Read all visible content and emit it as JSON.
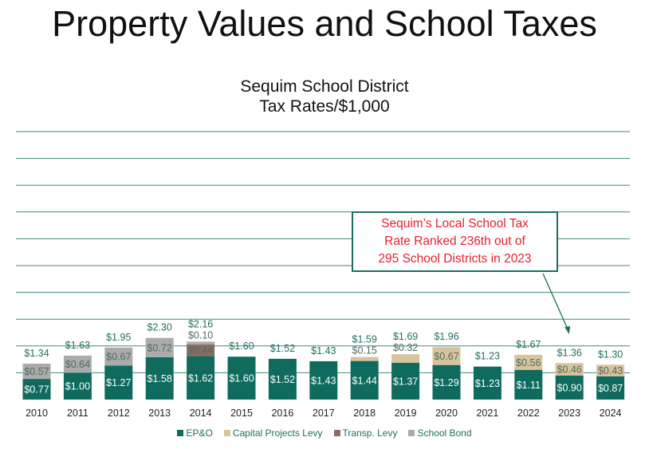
{
  "page_title": "Property Values and School Taxes",
  "callout": {
    "lines": [
      "Sequim’s Local School Tax",
      "Rate Ranked 236th out of",
      "295 School Districts in 2023"
    ],
    "points_to": "2023"
  },
  "colors": {
    "epo": "#0e6b5d",
    "capital": "#d8c49c",
    "transp": "#8b6b63",
    "bond": "#ababab",
    "grid": "#3f8a7b",
    "label_teal": "#1f7060",
    "callout_text": "#e8202e"
  },
  "chart_data": {
    "type": "bar",
    "stacked": true,
    "title": [
      "Sequim School District",
      "Tax Rates/$1,000"
    ],
    "xlabel": "",
    "ylabel": "",
    "ylim": [
      0,
      10
    ],
    "grid": true,
    "legend_position": "bottom",
    "categories": [
      "2010",
      "2011",
      "2012",
      "2013",
      "2014",
      "2015",
      "2016",
      "2017",
      "2018",
      "2019",
      "2020",
      "2021",
      "2022",
      "2023",
      "2024"
    ],
    "series": [
      {
        "key": "epo",
        "name": "EP&O",
        "values": [
          0.77,
          1.0,
          1.27,
          1.58,
          1.62,
          1.6,
          1.52,
          1.43,
          1.44,
          1.37,
          1.29,
          1.23,
          1.11,
          0.9,
          0.87
        ]
      },
      {
        "key": "capital",
        "name": "Capital Projects Levy",
        "values": [
          0,
          0,
          0,
          0,
          0,
          0,
          0,
          0,
          0.15,
          0.32,
          0.67,
          0,
          0.56,
          0.46,
          0.43
        ]
      },
      {
        "key": "transp",
        "name": "Transp. Levy",
        "values": [
          0,
          0,
          0,
          0,
          0.44,
          0,
          0,
          0,
          0,
          0,
          0,
          0,
          0,
          0,
          0
        ]
      },
      {
        "key": "bond",
        "name": "School Bond",
        "values": [
          0.57,
          0.64,
          0.67,
          0.72,
          0.1,
          0,
          0,
          0,
          0,
          0,
          0,
          0,
          0,
          0,
          0
        ]
      }
    ],
    "totals": [
      "$1.34",
      "$1.63",
      "$1.95",
      "$2.30",
      "$2.16",
      "$1.60",
      "$1.52",
      "$1.43",
      "$1.59",
      "$1.69",
      "$1.96",
      "$1.23",
      "$1.67",
      "$1.36",
      "$1.30"
    ]
  }
}
